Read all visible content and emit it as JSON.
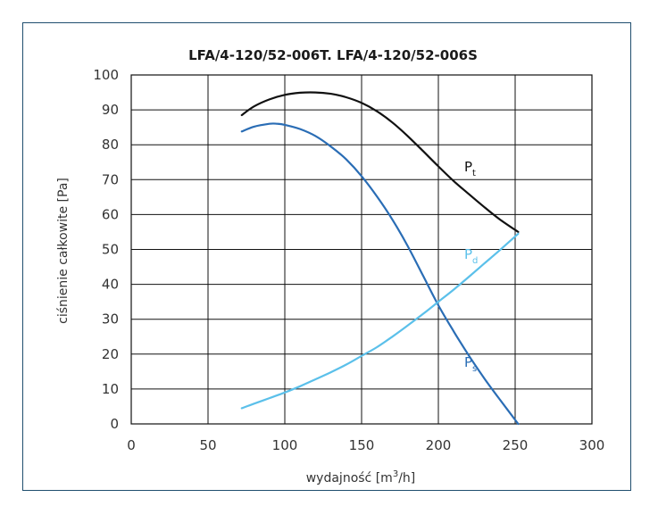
{
  "chart_data": {
    "type": "line",
    "title": "LFA/4-120/52-006T. LFA/4-120/52-006S",
    "xlabel": "wydajność [m³/h]",
    "xlabel_parts": [
      "wydajność [m",
      "3",
      "/h]"
    ],
    "ylabel": "ciśnienie całkowite [Pa]",
    "xlim": [
      0,
      300
    ],
    "ylim": [
      0,
      100
    ],
    "xticks": [
      "0",
      "50",
      "100",
      "150",
      "200",
      "250",
      "300"
    ],
    "yticks": [
      "0",
      "10",
      "20",
      "30",
      "40",
      "50",
      "60",
      "70",
      "80",
      "90",
      "100"
    ],
    "grid": true,
    "series": [
      {
        "name": "Pt",
        "label_main": "P",
        "label_sub": "t",
        "color": "#111111",
        "x": [
          72,
          80,
          90,
          100,
          110,
          120,
          130,
          140,
          150,
          160,
          170,
          180,
          190,
          200,
          210,
          220,
          230,
          240,
          252
        ],
        "y": [
          88.5,
          91.0,
          93.0,
          94.3,
          94.9,
          95.0,
          94.6,
          93.6,
          92.0,
          89.6,
          86.4,
          82.5,
          78.2,
          73.8,
          69.6,
          65.8,
          62.1,
          58.6,
          55.0
        ]
      },
      {
        "name": "Ps",
        "label_main": "P",
        "label_sub": "s",
        "color": "#2a6db5",
        "x": [
          72,
          80,
          90,
          95,
          100,
          110,
          120,
          130,
          140,
          150,
          160,
          170,
          180,
          190,
          200,
          210,
          220,
          230,
          240,
          252
        ],
        "y": [
          83.8,
          85.2,
          86.0,
          86.0,
          85.7,
          84.5,
          82.5,
          79.5,
          75.8,
          71.0,
          65.2,
          58.6,
          51.0,
          42.5,
          34.0,
          26.5,
          19.5,
          13.0,
          7.0,
          0.0
        ]
      },
      {
        "name": "Pd",
        "label_main": "P",
        "label_sub": "d",
        "color": "#5bc0ea",
        "x": [
          72,
          80,
          90,
          100,
          110,
          120,
          130,
          140,
          150,
          160,
          170,
          180,
          190,
          200,
          210,
          220,
          230,
          240,
          252
        ],
        "y": [
          4.5,
          5.8,
          7.4,
          9.0,
          10.8,
          12.8,
          14.8,
          17.0,
          19.5,
          22.0,
          25.0,
          28.2,
          31.5,
          35.0,
          38.5,
          42.2,
          46.0,
          49.8,
          54.5
        ]
      }
    ]
  }
}
